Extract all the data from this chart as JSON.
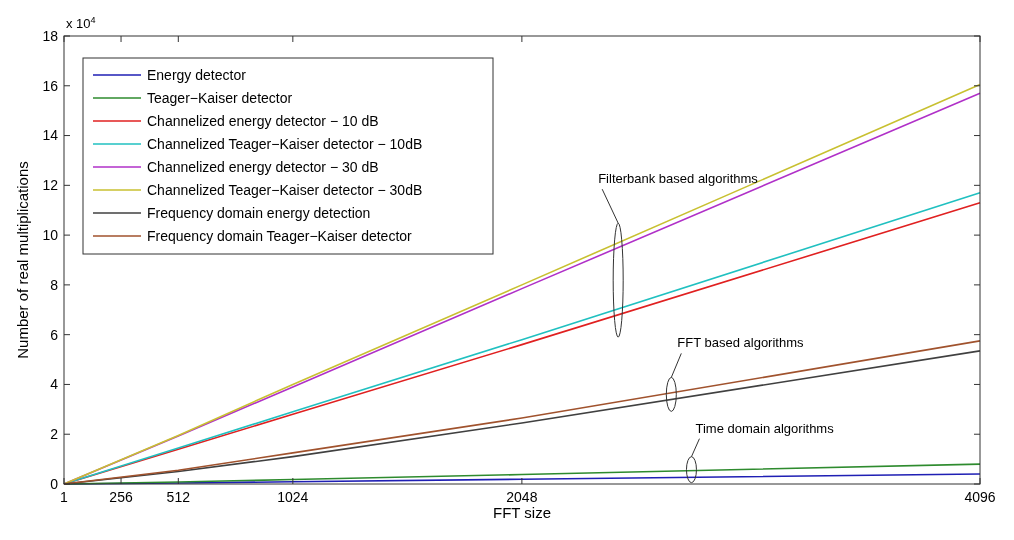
{
  "chart_data": {
    "type": "line",
    "xlabel": "FFT size",
    "ylabel": "Number of real multiplications",
    "x": [
      1,
      512,
      1024,
      2048,
      4096
    ],
    "xlim": [
      1,
      4096
    ],
    "xticks": [
      1,
      256,
      512,
      1024,
      2048,
      4096
    ],
    "ylim": [
      0,
      18
    ],
    "yticks": [
      0,
      2,
      4,
      6,
      8,
      10,
      12,
      14,
      16,
      18
    ],
    "grid": false,
    "legend": "top left",
    "marker": "none",
    "line_style": "solid",
    "series": [
      {
        "name": "Energy detector",
        "color": "#1f1fb4",
        "values": [
          0,
          0.04,
          0.09,
          0.19,
          0.4
        ]
      },
      {
        "name": "Teager−Kaiser detector",
        "color": "#2e8b2e",
        "values": [
          0,
          0.08,
          0.18,
          0.38,
          0.8
        ]
      },
      {
        "name": "Channelized energy detector − 10 dB",
        "color": "#e02020",
        "values": [
          0,
          1.4,
          2.8,
          5.6,
          11.3
        ]
      },
      {
        "name": "Channelized Teager−Kaiser detector − 10dB",
        "color": "#20c0c0",
        "values": [
          0,
          1.45,
          2.9,
          5.8,
          11.7
        ]
      },
      {
        "name": "Channelized energy detector − 30 dB",
        "color": "#b030c8",
        "values": [
          0,
          1.93,
          3.9,
          7.85,
          15.7
        ]
      },
      {
        "name": "Channelized Teager−Kaiser detector − 30dB",
        "color": "#c8c030",
        "values": [
          0,
          1.95,
          4.0,
          8.0,
          16.05
        ]
      },
      {
        "name": "Frequency domain energy detection",
        "color": "#404040",
        "values": [
          0,
          0.5,
          1.1,
          2.45,
          5.35
        ]
      },
      {
        "name": "Frequency domain Teager−Kaiser detector",
        "color": "#a0522d",
        "values": [
          0,
          0.55,
          1.25,
          2.65,
          5.75
        ]
      }
    ],
    "annotations": [
      "Filterbank based algorithms",
      "FFT based algorithms",
      "Time domain algorithms",
      "x 10$^{4}$"
    ]
  }
}
